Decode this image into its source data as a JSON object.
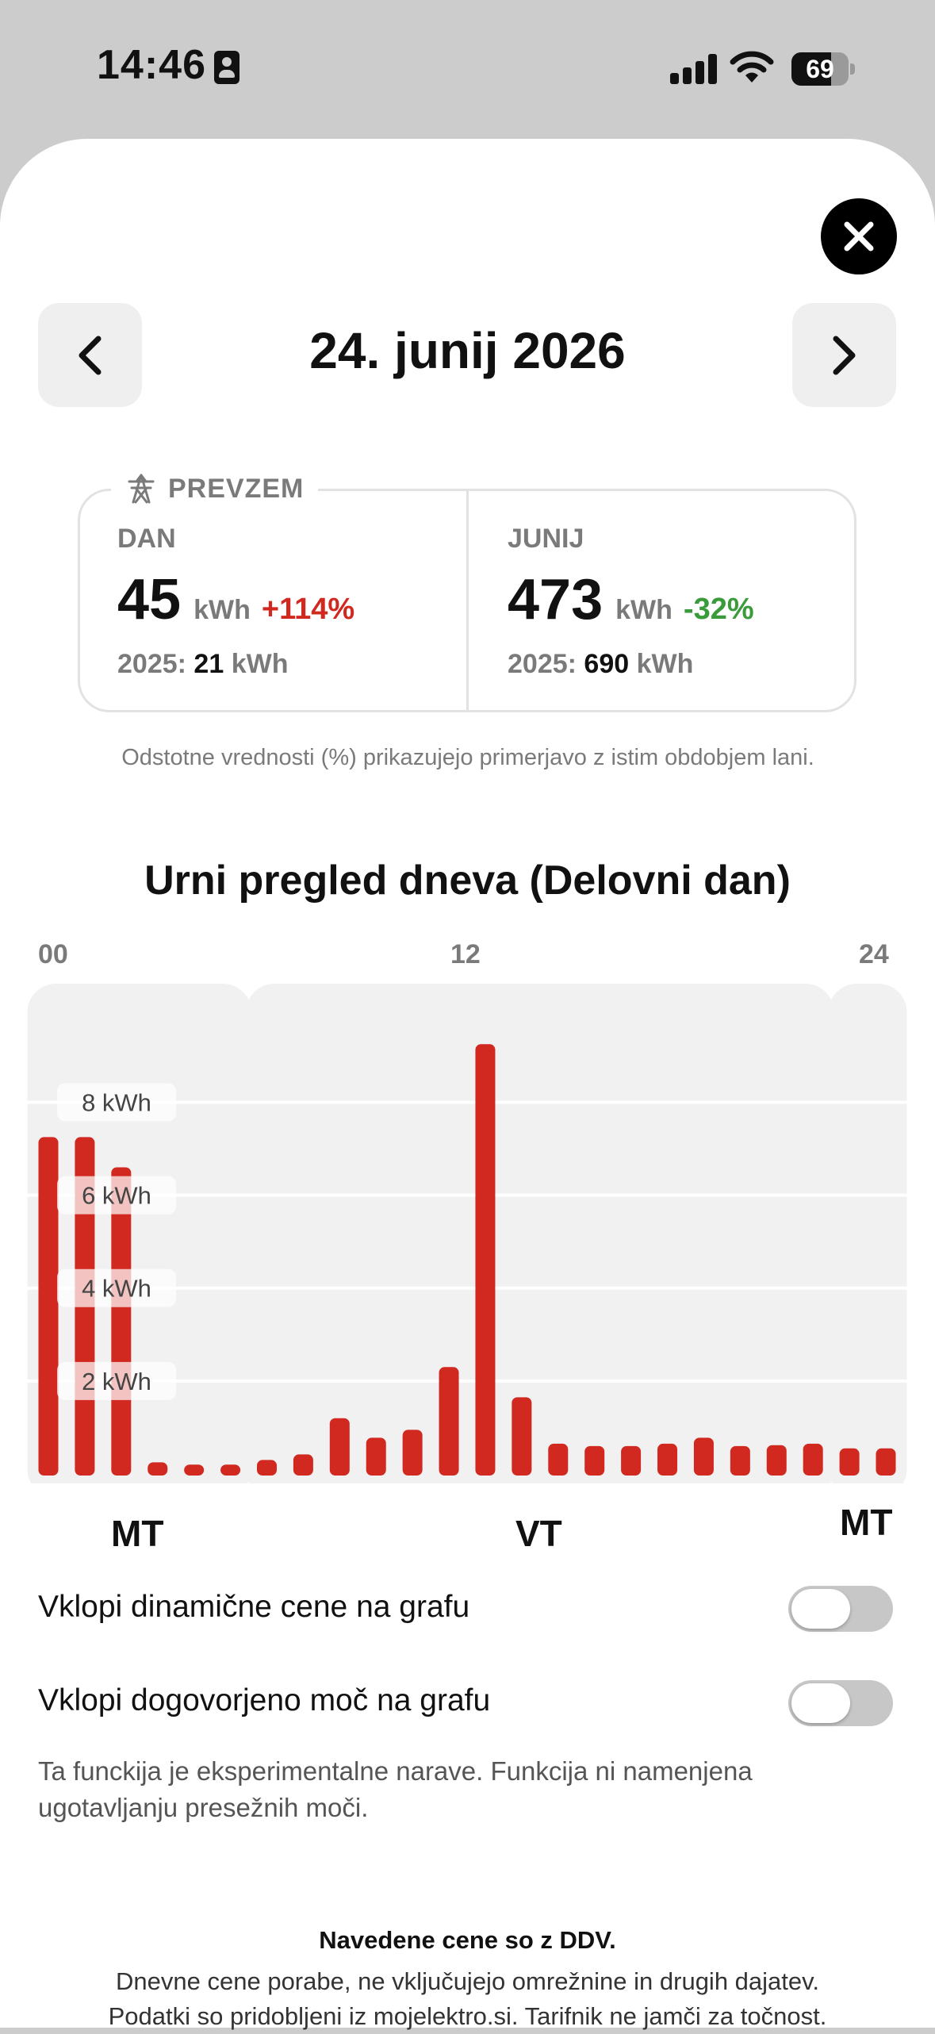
{
  "status_bar": {
    "time": "14:46",
    "battery": "69",
    "battery_level": 0.69
  },
  "header": {
    "date": "24. junij 2026"
  },
  "summary": {
    "label": "PREVZEM",
    "day": {
      "heading": "DAN",
      "value": "45",
      "unit": "kWh",
      "change": "+114%",
      "prev_year": "2025:",
      "prev_value": "21",
      "prev_unit": "kWh"
    },
    "month": {
      "heading": "JUNIJ",
      "value": "473",
      "unit": "kWh",
      "change": "-32%",
      "prev_year": "2025:",
      "prev_value": "690",
      "prev_unit": "kWh"
    },
    "note": "Odstotne vrednosti (%) prikazujejo primerjavo z istim obdobjem lani."
  },
  "chart_section": {
    "title": "Urni pregled dneva (Delovni dan)",
    "hour_labels": [
      "00",
      "12",
      "24"
    ],
    "tariff_labels": [
      "MT",
      "VT",
      "MT"
    ]
  },
  "chart_data": {
    "type": "bar",
    "categories": [
      "0",
      "1",
      "2",
      "3",
      "4",
      "5",
      "6",
      "7",
      "8",
      "9",
      "10",
      "11",
      "12",
      "13",
      "14",
      "15",
      "16",
      "17",
      "18",
      "19",
      "20",
      "21",
      "22",
      "23"
    ],
    "values": [
      7.25,
      7.25,
      6.6,
      0.25,
      0.2,
      0.2,
      0.3,
      0.42,
      1.2,
      0.78,
      0.95,
      2.3,
      9.25,
      1.65,
      0.65,
      0.6,
      0.6,
      0.65,
      0.78,
      0.6,
      0.62,
      0.65,
      0.55,
      0.55
    ],
    "y_ticks": [
      "2 kWh",
      "4 kWh",
      "6 kWh",
      "8 kWh"
    ],
    "ylim": [
      0,
      10.5
    ],
    "bar_color": "#d1281f",
    "grid": true
  },
  "toggles": [
    {
      "label": "Vklopi dinamične cene na grafu",
      "on": false
    },
    {
      "label": "Vklopi dogovorjeno moč na grafu",
      "on": false
    }
  ],
  "experimental_note": "Ta funckija je eksperimentalne narave. Funkcija ni namenjena ugotavljanju presežnih moči.",
  "footer": {
    "bold": "Navedene cene so z DDV.",
    "line1": "Dnevne cene porabe, ne vključujejo omrežnine in drugih dajatev.",
    "line2": "Podatki so pridobljeni iz mojelektro.si. Tarifnik ne jamči za točnost."
  },
  "colors": {
    "accent_red": "#d1281f",
    "accent_green": "#3a9b3a",
    "muted_gray": "#7a7a7a"
  },
  "icons": [
    "id-card-icon",
    "signal-icon",
    "wifi-icon",
    "battery-icon",
    "close-icon",
    "chevron-left-icon",
    "chevron-right-icon",
    "power-tower-icon"
  ]
}
